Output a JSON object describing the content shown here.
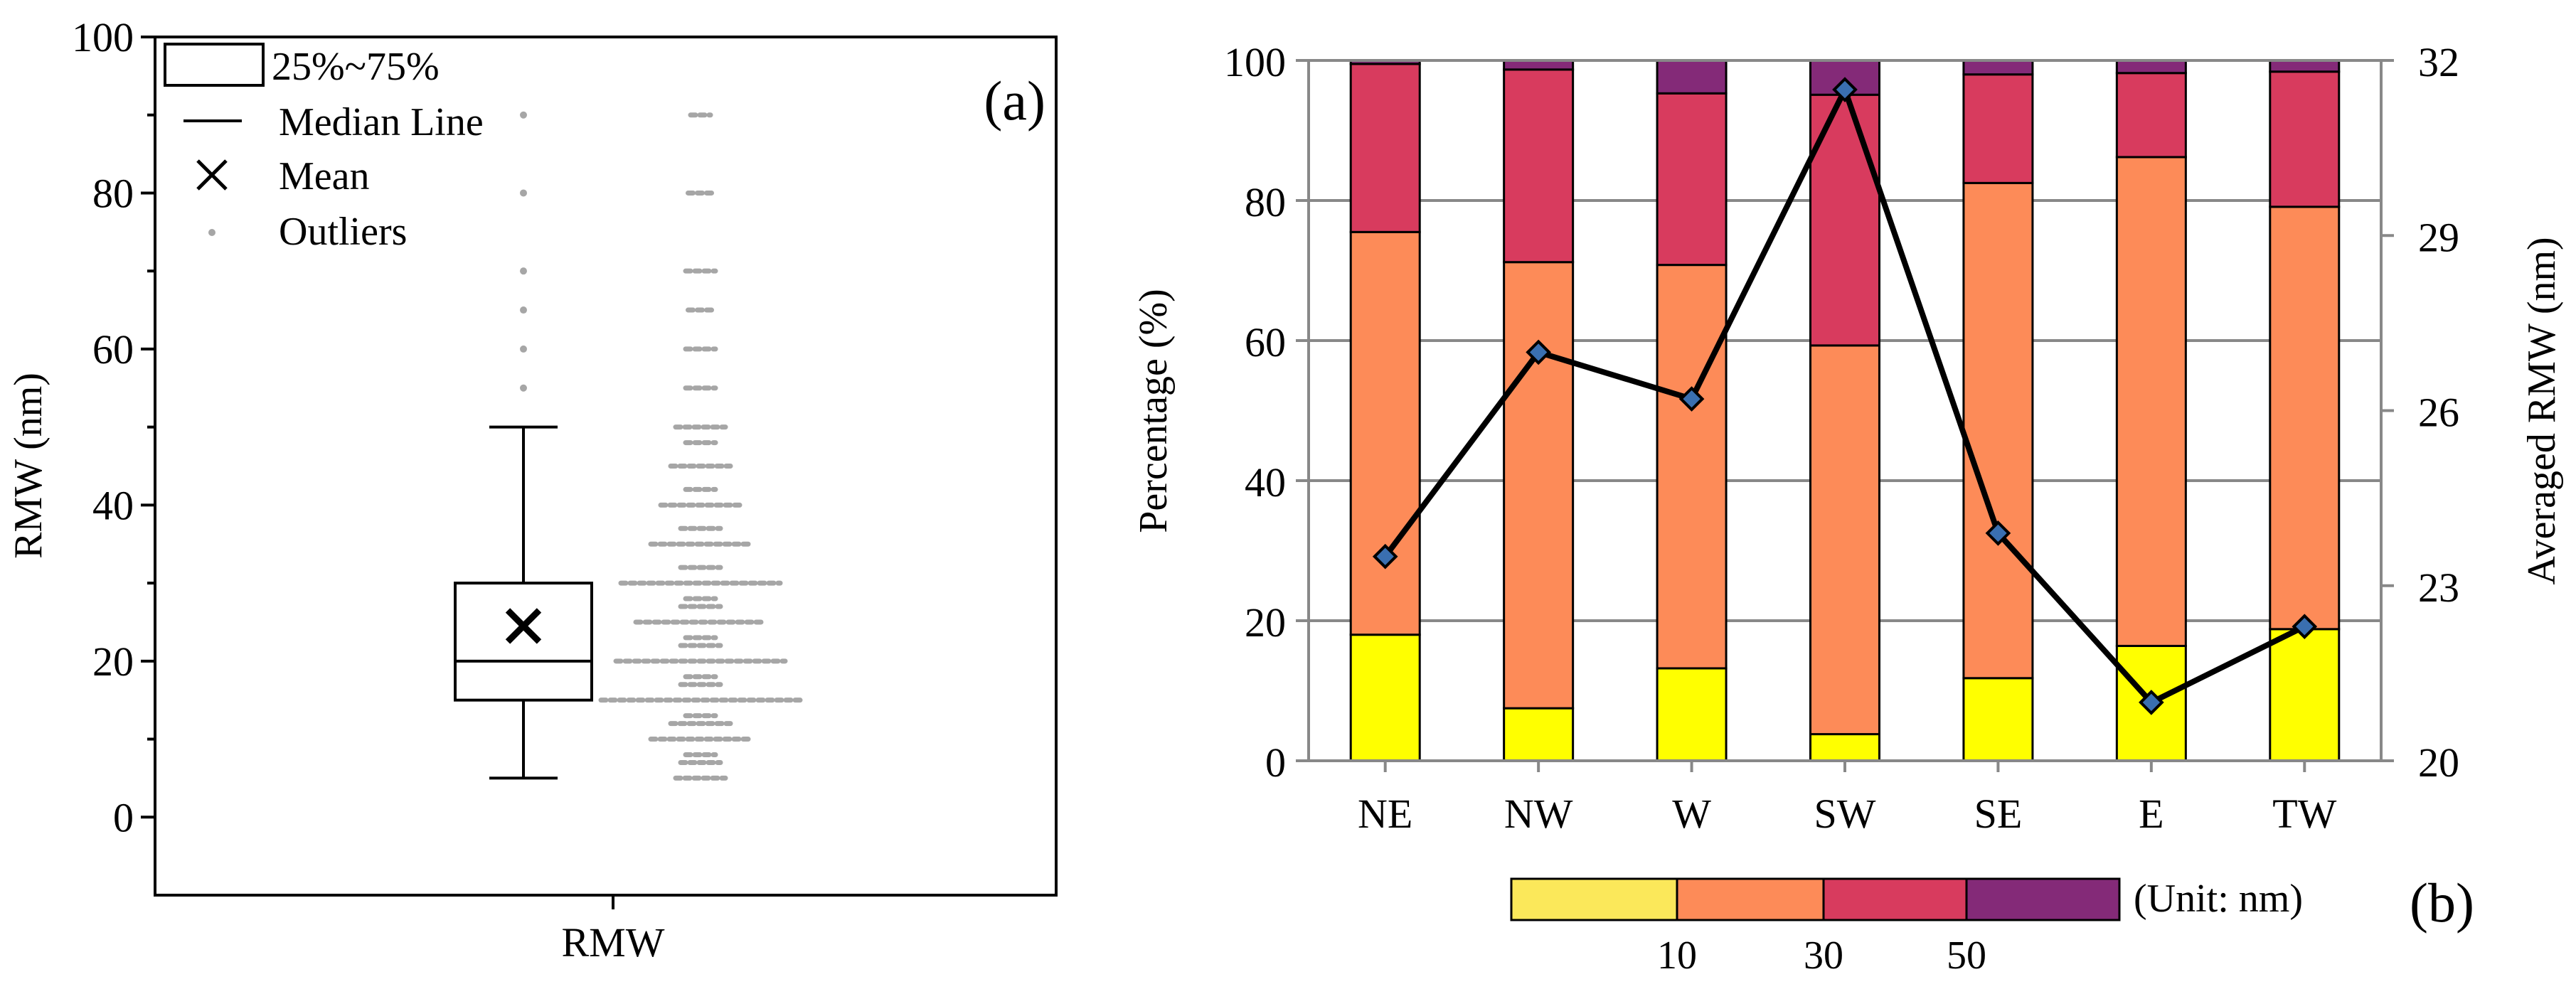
{
  "colors": {
    "yellow": "#ffff00",
    "orange": "#fd8b58",
    "red": "#d83b5e",
    "purple": "#842a78",
    "line": "#000000",
    "marker": "#3a6fb0",
    "grid": "#888888",
    "outlier": "#a6a6a6",
    "scale_yellow": "#fbe85a"
  },
  "chart_data": [
    {
      "id": "a",
      "panel_label": "(a)",
      "type": "box",
      "ylabel": "RMW (nm)",
      "xlabel": "RMW",
      "ylim": [
        -10,
        100
      ],
      "yticks": [
        0,
        20,
        40,
        60,
        80,
        100
      ],
      "yticks_minor": [
        10,
        30,
        50,
        70,
        90
      ],
      "category": "RMW",
      "box": {
        "whisker_low": 5,
        "q1": 15,
        "median": 20,
        "q3": 30,
        "whisker_high": 50,
        "mean": 24.5
      },
      "outliers": [
        55,
        60,
        65,
        70,
        80,
        90
      ],
      "distribution": [
        {
          "v": 5,
          "w": 0.5
        },
        {
          "v": 7,
          "w": 0.4
        },
        {
          "v": 8,
          "w": 0.3
        },
        {
          "v": 10,
          "w": 1.0
        },
        {
          "v": 12,
          "w": 0.6
        },
        {
          "v": 13,
          "w": 0.3
        },
        {
          "v": 15,
          "w": 2.0
        },
        {
          "v": 17,
          "w": 0.4
        },
        {
          "v": 18,
          "w": 0.3
        },
        {
          "v": 20,
          "w": 1.7
        },
        {
          "v": 22,
          "w": 0.4
        },
        {
          "v": 23,
          "w": 0.3
        },
        {
          "v": 25,
          "w": 1.3
        },
        {
          "v": 27,
          "w": 0.4
        },
        {
          "v": 28,
          "w": 0.3
        },
        {
          "v": 30,
          "w": 1.6
        },
        {
          "v": 32,
          "w": 0.4
        },
        {
          "v": 35,
          "w": 1.0
        },
        {
          "v": 37,
          "w": 0.4
        },
        {
          "v": 40,
          "w": 0.8
        },
        {
          "v": 42,
          "w": 0.3
        },
        {
          "v": 45,
          "w": 0.6
        },
        {
          "v": 48,
          "w": 0.3
        },
        {
          "v": 50,
          "w": 0.5
        },
        {
          "v": 55,
          "w": 0.3
        },
        {
          "v": 60,
          "w": 0.3
        },
        {
          "v": 65,
          "w": 0.25
        },
        {
          "v": 70,
          "w": 0.3
        },
        {
          "v": 80,
          "w": 0.25
        },
        {
          "v": 90,
          "w": 0.2
        }
      ],
      "legend": [
        {
          "kind": "box",
          "label": "25%~75%"
        },
        {
          "kind": "line",
          "label": "Median Line"
        },
        {
          "kind": "cross",
          "label": "Mean"
        },
        {
          "kind": "dot",
          "label": "Outliers"
        }
      ]
    },
    {
      "id": "b",
      "panel_label": "(b)",
      "type": "stacked-bar-with-line",
      "categories": [
        "NE",
        "NW",
        "W",
        "SW",
        "SE",
        "E",
        "TW"
      ],
      "ylabel": "Percentage  (%)",
      "ylim": [
        0,
        100
      ],
      "yticks": [
        0,
        20,
        40,
        60,
        80,
        100
      ],
      "y2label": "Averaged  RMW  (nm)",
      "y2lim": [
        20,
        32
      ],
      "y2ticks": [
        20,
        23,
        26,
        29,
        32
      ],
      "series": [
        {
          "name": "<=10",
          "color_key": "yellow",
          "values": [
            18.0,
            7.5,
            13.2,
            3.8,
            11.8,
            16.4,
            18.8
          ]
        },
        {
          "name": "10-30",
          "color_key": "orange",
          "values": [
            57.5,
            63.7,
            57.6,
            55.5,
            70.7,
            69.8,
            60.3
          ]
        },
        {
          "name": "30-50",
          "color_key": "red",
          "values": [
            24.0,
            27.5,
            24.5,
            35.8,
            15.5,
            12.0,
            19.3
          ]
        },
        {
          "name": ">50",
          "color_key": "purple",
          "values": [
            0.5,
            1.3,
            4.7,
            4.9,
            2.0,
            1.8,
            1.6
          ]
        }
      ],
      "line_series": {
        "name": "Averaged RMW",
        "values": [
          23.5,
          27.0,
          26.2,
          31.5,
          23.9,
          21.0,
          22.3
        ]
      },
      "color_scale": {
        "labels": [
          "10",
          "30",
          "50"
        ],
        "unit": "(Unit:  nm)",
        "color_keys": [
          "scale_yellow",
          "orange",
          "red",
          "purple"
        ]
      }
    }
  ]
}
